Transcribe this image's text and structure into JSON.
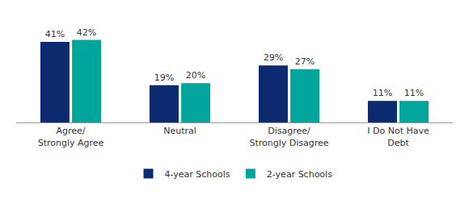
{
  "chart_data": {
    "type": "bar",
    "categories": [
      "Agree/ Strongly Agree",
      "Neutral",
      "Disagree/ Strongly Disagree",
      "I Do Not Have Debt"
    ],
    "series": [
      {
        "name": "4-year Schools",
        "color": "#0b2a6f",
        "values": [
          41,
          19,
          29,
          11
        ],
        "value_labels": [
          "41%",
          "19%",
          "29%",
          "11%"
        ]
      },
      {
        "name": "2-year Schools",
        "color": "#00a69c",
        "values": [
          42,
          20,
          27,
          11
        ],
        "value_labels": [
          "42%",
          "20%",
          "27%",
          "11%"
        ]
      }
    ],
    "ylim": [
      0,
      50
    ],
    "grid": false,
    "legend": "bottom",
    "data_labels": true,
    "tick_labels": "x"
  }
}
